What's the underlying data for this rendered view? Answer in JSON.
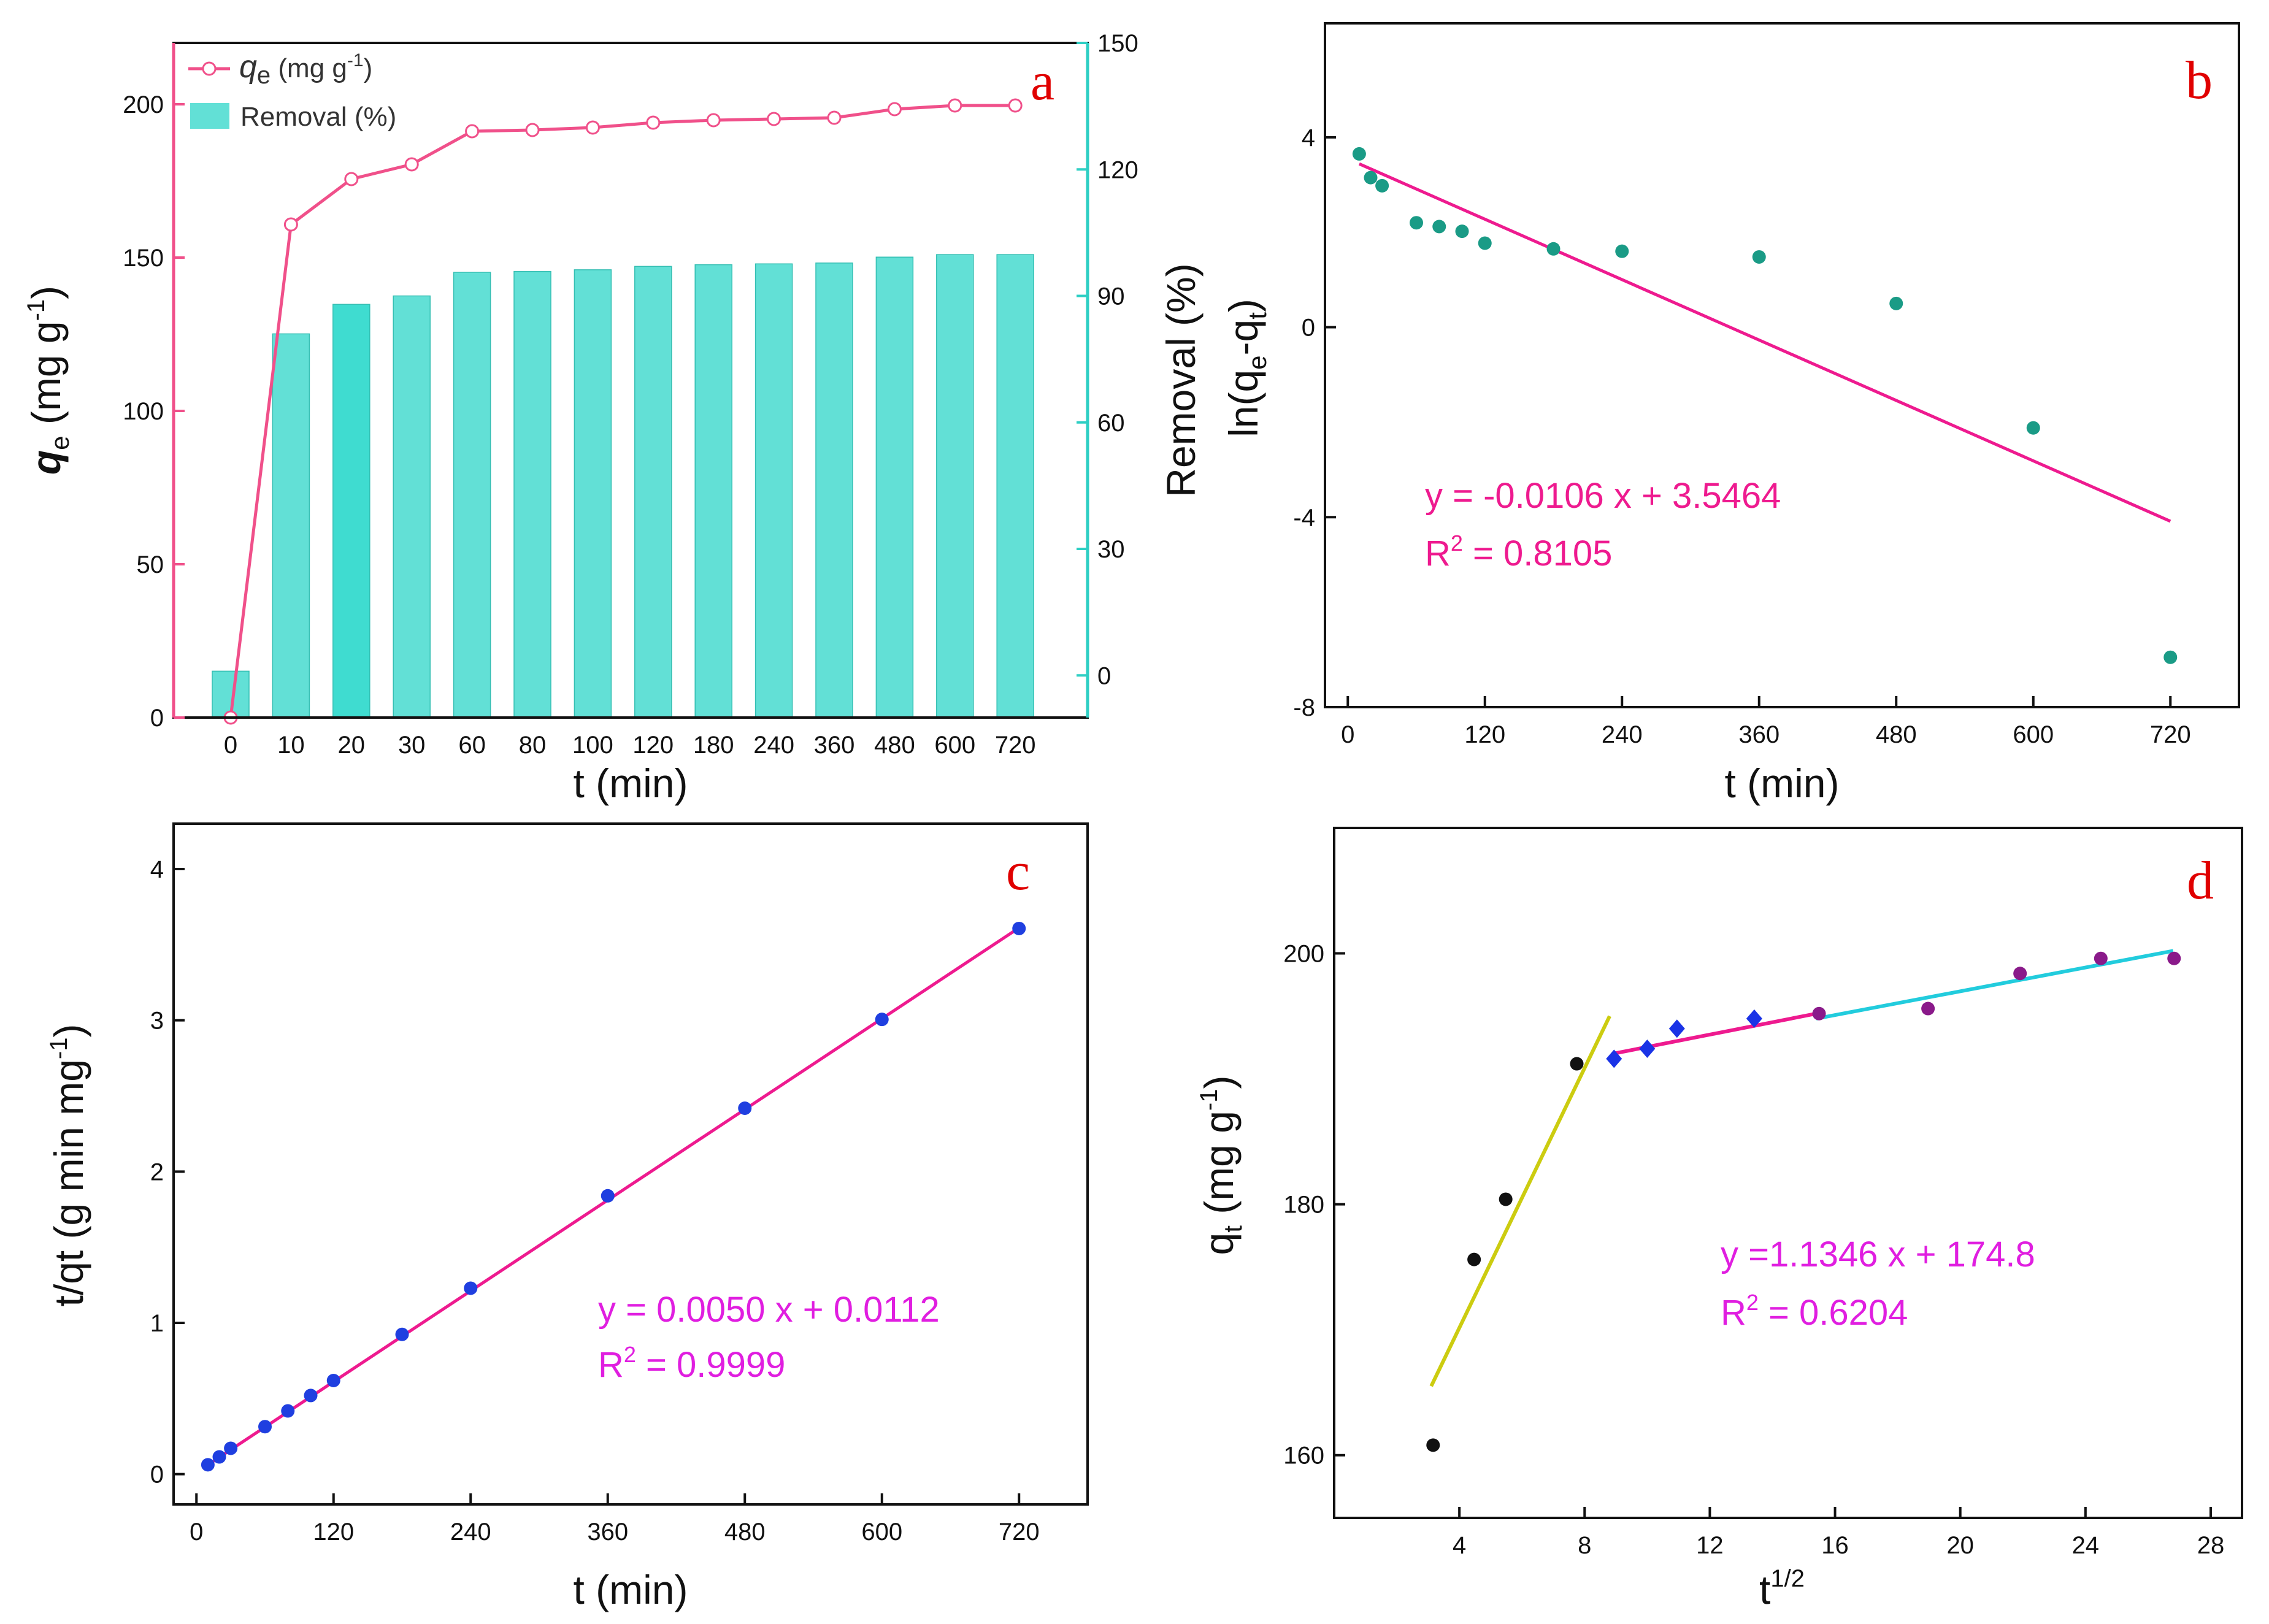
{
  "chart_data": [
    {
      "panel": "a",
      "type": "bar",
      "categories": [
        "0",
        "10",
        "20",
        "30",
        "60",
        "80",
        "100",
        "120",
        "180",
        "240",
        "360",
        "480",
        "600",
        "720"
      ],
      "xlabel": "t (min)",
      "ylabel_left": {
        "symbol": "q",
        "sub": "e",
        "unit": " (mg g",
        "sup": "-1",
        "close": ")"
      },
      "ylabel_right": "Removal (%)",
      "ylim_left": [
        0,
        220
      ],
      "yticks_left": [
        0,
        50,
        100,
        150,
        200
      ],
      "ylim_right": [
        -10,
        150
      ],
      "yticks_right": [
        0,
        30,
        60,
        90,
        120,
        150
      ],
      "series": [
        {
          "name": "qe (mg g-1)",
          "kind": "line",
          "axis": "left",
          "color": "#f0508a",
          "values": [
            0,
            160.8,
            175.6,
            180.4,
            191.2,
            191.6,
            192.4,
            194.0,
            194.8,
            195.2,
            195.6,
            198.4,
            199.6,
            199.6
          ]
        },
        {
          "name": "Removal (%)",
          "kind": "bar",
          "axis": "right",
          "color": "#62e0d6",
          "values": [
            1,
            81,
            88,
            90,
            95.6,
            95.8,
            96.2,
            97,
            97.4,
            97.6,
            97.8,
            99.2,
            99.8,
            99.8
          ]
        }
      ],
      "legend": {
        "line_symbol": "q",
        "line_sub": "e",
        "line_unit": " (mg g",
        "line_sup": "-1",
        "line_close": ")",
        "bar_label": "Removal (%)"
      },
      "letter": "a"
    },
    {
      "panel": "b",
      "type": "scatter",
      "xlabel": "t (min)",
      "ylabel": {
        "pre": "ln(q",
        "sub1": "e",
        "mid": "-q",
        "sub2": "t",
        "close": ")"
      },
      "xlim": [
        -20,
        780
      ],
      "xticks": [
        0,
        120,
        240,
        360,
        480,
        600,
        720
      ],
      "ylim": [
        -8,
        6.4
      ],
      "yticks": [
        -8,
        -4,
        0,
        4
      ],
      "points": {
        "color": "#1a9b86",
        "x": [
          10,
          20,
          30,
          60,
          80,
          100,
          120,
          180,
          240,
          360,
          480,
          600,
          720
        ],
        "y": [
          3.65,
          3.15,
          2.98,
          2.2,
          2.12,
          2.02,
          1.77,
          1.65,
          1.6,
          1.48,
          0.5,
          -2.12,
          -6.95
        ]
      },
      "fit": {
        "color": "#ee1a8f",
        "slope": -0.0106,
        "intercept": 3.5464,
        "x_range": [
          10,
          720
        ]
      },
      "equation": "y = -0.0106 x + 3.5464",
      "r2": {
        "label": "R",
        "sup": "2",
        "value": " = 0.8105"
      },
      "letter": "b"
    },
    {
      "panel": "c",
      "type": "scatter",
      "xlabel": "t (min)",
      "ylabel": {
        "pre": "t/qt  (g min mg",
        "sup": "-1",
        "close": ")"
      },
      "xlim": [
        -20,
        780
      ],
      "xticks": [
        0,
        120,
        240,
        360,
        480,
        600,
        720
      ],
      "ylim": [
        -0.2,
        4.3
      ],
      "yticks": [
        0,
        1,
        2,
        3,
        4
      ],
      "points": {
        "color": "#1f3fe0",
        "x": [
          10,
          20,
          30,
          60,
          80,
          100,
          120,
          180,
          240,
          360,
          480,
          600,
          720
        ],
        "y": [
          0.062,
          0.114,
          0.171,
          0.314,
          0.418,
          0.52,
          0.619,
          0.924,
          1.229,
          1.84,
          2.419,
          3.006,
          3.607
        ]
      },
      "fit": {
        "color": "#ee1a8f",
        "slope": 0.005,
        "intercept": 0.0112,
        "x_range": [
          10,
          720
        ]
      },
      "equation": "y = 0.0050 x + 0.0112",
      "r2": {
        "label": "R",
        "sup": "2",
        "value": " = 0.9999"
      },
      "letter": "c"
    },
    {
      "panel": "d",
      "type": "scatter",
      "xlabel": {
        "pre": "t",
        "sup": "1/2"
      },
      "ylabel": {
        "pre": "q",
        "sub": "t",
        "post": " (mg g",
        "sup": "-1",
        "close": ")"
      },
      "xlim": [
        0,
        29
      ],
      "xticks": [
        4,
        8,
        12,
        16,
        20,
        24,
        28
      ],
      "ylim": [
        155,
        210
      ],
      "yticks": [
        160,
        180,
        200
      ],
      "groups": [
        {
          "color": "#111111",
          "marker": "circle",
          "x": [
            3.16,
            4.47,
            5.48,
            7.75
          ],
          "y": [
            160.8,
            175.6,
            180.4,
            191.2
          ]
        },
        {
          "color": "#1a33e6",
          "marker": "diamond",
          "x": [
            8.94,
            10.0,
            10.95,
            13.42
          ],
          "y": [
            191.6,
            192.4,
            194.0,
            194.8
          ]
        },
        {
          "color": "#8a1a8a",
          "marker": "circle",
          "x": [
            15.49,
            18.97,
            21.91,
            24.49,
            26.83
          ],
          "y": [
            195.2,
            195.6,
            198.4,
            199.6,
            199.6
          ]
        }
      ],
      "fits": [
        {
          "color": "#cccc10",
          "x1": 3.1,
          "y1": 165.5,
          "x2": 8.8,
          "y2": 195.0
        },
        {
          "color": "#ee1a8f",
          "x1": 8.9,
          "y1": 192.0,
          "x2": 15.4,
          "y2": 195.2
        },
        {
          "color": "#22ccdd",
          "x1": 15.4,
          "y1": 194.8,
          "x2": 26.8,
          "y2": 200.2
        }
      ],
      "equation": "y =1.1346 x + 174.8",
      "r2": {
        "label": "R",
        "sup": "2",
        "value": " = 0.6204"
      },
      "letter": "d"
    }
  ]
}
